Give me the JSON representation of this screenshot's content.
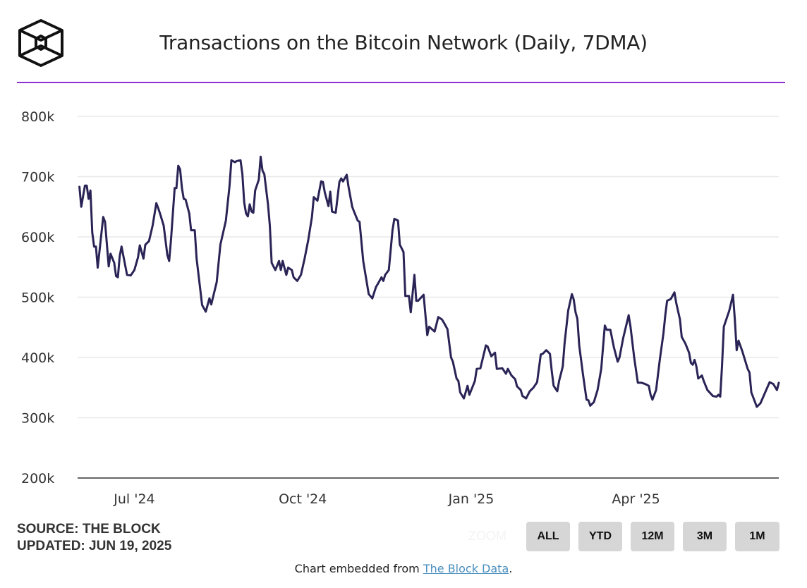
{
  "header": {
    "logo_name": "The Block",
    "title": "Transactions on the Bitcoin Network (Daily, 7DMA)"
  },
  "colors": {
    "accent_rule": "#8e2fd6",
    "line": "#2a2456",
    "grid": "#e8e8e8",
    "button_bg": "#d6d6d6",
    "link": "#4a8fbf"
  },
  "chart_data": {
    "type": "line",
    "title": "Transactions on the Bitcoin Network (Daily, 7DMA)",
    "xlabel": "",
    "ylabel": "",
    "xlim": [
      "2024-05-31",
      "2025-06-18"
    ],
    "ylim": [
      200000,
      800000
    ],
    "grid": true,
    "legend": "none",
    "yticks": [
      {
        "value": 200000,
        "label": "200k"
      },
      {
        "value": 300000,
        "label": "300k"
      },
      {
        "value": 400000,
        "label": "400k"
      },
      {
        "value": 500000,
        "label": "500k"
      },
      {
        "value": 600000,
        "label": "600k"
      },
      {
        "value": 700000,
        "label": "700k"
      },
      {
        "value": 800000,
        "label": "800k"
      }
    ],
    "xticks": [
      {
        "date": "2024-07-01",
        "label": "Jul '24"
      },
      {
        "date": "2024-10-01",
        "label": "Oct '24"
      },
      {
        "date": "2025-01-01",
        "label": "Jan '25"
      },
      {
        "date": "2025-04-01",
        "label": "Apr '25"
      }
    ],
    "series": [
      {
        "points": [
          [
            "2024-06-01",
            683000
          ],
          [
            "2024-06-02",
            650000
          ],
          [
            "2024-06-04",
            685000
          ],
          [
            "2024-06-05",
            685000
          ],
          [
            "2024-06-06",
            663000
          ],
          [
            "2024-06-07",
            677000
          ],
          [
            "2024-06-08",
            607000
          ],
          [
            "2024-06-09",
            584000
          ],
          [
            "2024-06-10",
            584000
          ],
          [
            "2024-06-11",
            549000
          ],
          [
            "2024-06-14",
            633000
          ],
          [
            "2024-06-15",
            625000
          ],
          [
            "2024-06-17",
            551000
          ],
          [
            "2024-06-18",
            572000
          ],
          [
            "2024-06-20",
            557000
          ],
          [
            "2024-06-21",
            535000
          ],
          [
            "2024-06-22",
            533000
          ],
          [
            "2024-06-23",
            568000
          ],
          [
            "2024-06-24",
            584000
          ],
          [
            "2024-06-27",
            537000
          ],
          [
            "2024-06-29",
            536000
          ],
          [
            "2024-07-01",
            545000
          ],
          [
            "2024-07-03",
            566000
          ],
          [
            "2024-07-04",
            586000
          ],
          [
            "2024-07-06",
            564000
          ],
          [
            "2024-07-07",
            587000
          ],
          [
            "2024-07-09",
            593000
          ],
          [
            "2024-07-11",
            619000
          ],
          [
            "2024-07-13",
            656000
          ],
          [
            "2024-07-14",
            648000
          ],
          [
            "2024-07-15",
            639000
          ],
          [
            "2024-07-17",
            619000
          ],
          [
            "2024-07-19",
            570000
          ],
          [
            "2024-07-20",
            560000
          ],
          [
            "2024-07-21",
            595000
          ],
          [
            "2024-07-23",
            681000
          ],
          [
            "2024-07-24",
            681000
          ],
          [
            "2024-07-25",
            718000
          ],
          [
            "2024-07-26",
            712000
          ],
          [
            "2024-07-27",
            681000
          ],
          [
            "2024-07-28",
            663000
          ],
          [
            "2024-07-29",
            662000
          ],
          [
            "2024-07-31",
            639000
          ],
          [
            "2024-08-01",
            611000
          ],
          [
            "2024-08-03",
            611000
          ],
          [
            "2024-08-04",
            564000
          ],
          [
            "2024-08-07",
            487000
          ],
          [
            "2024-08-09",
            476000
          ],
          [
            "2024-08-11",
            498000
          ],
          [
            "2024-08-12",
            488000
          ],
          [
            "2024-08-15",
            525000
          ],
          [
            "2024-08-17",
            587000
          ],
          [
            "2024-08-20",
            627000
          ],
          [
            "2024-08-22",
            685000
          ],
          [
            "2024-08-23",
            727000
          ],
          [
            "2024-08-25",
            724000
          ],
          [
            "2024-08-26",
            726000
          ],
          [
            "2024-08-28",
            727000
          ],
          [
            "2024-08-29",
            704000
          ],
          [
            "2024-08-30",
            657000
          ],
          [
            "2024-08-31",
            639000
          ],
          [
            "2024-09-01",
            634000
          ],
          [
            "2024-09-02",
            654000
          ],
          [
            "2024-09-03",
            642000
          ],
          [
            "2024-09-04",
            640000
          ],
          [
            "2024-09-05",
            677000
          ],
          [
            "2024-09-07",
            695000
          ],
          [
            "2024-09-08",
            733000
          ],
          [
            "2024-09-09",
            710000
          ],
          [
            "2024-09-10",
            704000
          ],
          [
            "2024-09-12",
            654000
          ],
          [
            "2024-09-13",
            619000
          ],
          [
            "2024-09-14",
            557000
          ],
          [
            "2024-09-16",
            545000
          ],
          [
            "2024-09-18",
            560000
          ],
          [
            "2024-09-19",
            545000
          ],
          [
            "2024-09-20",
            560000
          ],
          [
            "2024-09-22",
            537000
          ],
          [
            "2024-09-23",
            549000
          ],
          [
            "2024-09-25",
            545000
          ],
          [
            "2024-09-26",
            533000
          ],
          [
            "2024-09-28",
            527000
          ],
          [
            "2024-09-30",
            537000
          ],
          [
            "2024-10-02",
            564000
          ],
          [
            "2024-10-04",
            595000
          ],
          [
            "2024-10-06",
            633000
          ],
          [
            "2024-10-07",
            666000
          ],
          [
            "2024-10-09",
            660000
          ],
          [
            "2024-10-11",
            692000
          ],
          [
            "2024-10-12",
            691000
          ],
          [
            "2024-10-13",
            674000
          ],
          [
            "2024-10-15",
            651000
          ],
          [
            "2024-10-16",
            675000
          ],
          [
            "2024-10-17",
            642000
          ],
          [
            "2024-10-19",
            640000
          ],
          [
            "2024-10-21",
            691000
          ],
          [
            "2024-10-22",
            697000
          ],
          [
            "2024-10-23",
            692000
          ],
          [
            "2024-10-25",
            703000
          ],
          [
            "2024-10-26",
            683000
          ],
          [
            "2024-10-28",
            650000
          ],
          [
            "2024-10-29",
            642000
          ],
          [
            "2024-10-31",
            627000
          ],
          [
            "2024-11-01",
            625000
          ],
          [
            "2024-11-03",
            560000
          ],
          [
            "2024-11-06",
            505000
          ],
          [
            "2024-11-08",
            498000
          ],
          [
            "2024-11-10",
            517000
          ],
          [
            "2024-11-11",
            522000
          ],
          [
            "2024-11-13",
            533000
          ],
          [
            "2024-11-14",
            527000
          ],
          [
            "2024-11-15",
            537000
          ],
          [
            "2024-11-17",
            545000
          ],
          [
            "2024-11-19",
            611000
          ],
          [
            "2024-11-20",
            630000
          ],
          [
            "2024-11-22",
            627000
          ],
          [
            "2024-11-23",
            587000
          ],
          [
            "2024-11-25",
            575000
          ],
          [
            "2024-11-26",
            502000
          ],
          [
            "2024-11-28",
            502000
          ],
          [
            "2024-11-29",
            475000
          ],
          [
            "2024-12-01",
            537000
          ],
          [
            "2024-12-02",
            494000
          ],
          [
            "2024-12-03",
            494000
          ],
          [
            "2024-12-06",
            504000
          ],
          [
            "2024-12-08",
            437000
          ],
          [
            "2024-12-09",
            451000
          ],
          [
            "2024-12-12",
            443000
          ],
          [
            "2024-12-14",
            467000
          ],
          [
            "2024-12-16",
            463000
          ],
          [
            "2024-12-17",
            458000
          ],
          [
            "2024-12-19",
            447000
          ],
          [
            "2024-12-21",
            400000
          ],
          [
            "2024-12-22",
            393000
          ],
          [
            "2024-12-24",
            365000
          ],
          [
            "2024-12-25",
            361000
          ],
          [
            "2024-12-26",
            342000
          ],
          [
            "2024-12-28",
            332000
          ],
          [
            "2024-12-30",
            353000
          ],
          [
            "2024-12-31",
            338000
          ],
          [
            "2025-01-03",
            361000
          ],
          [
            "2025-01-04",
            381000
          ],
          [
            "2025-01-06",
            382000
          ],
          [
            "2025-01-09",
            420000
          ],
          [
            "2025-01-10",
            418000
          ],
          [
            "2025-01-12",
            402000
          ],
          [
            "2025-01-14",
            408000
          ],
          [
            "2025-01-15",
            381000
          ],
          [
            "2025-01-18",
            382000
          ],
          [
            "2025-01-20",
            373000
          ],
          [
            "2025-01-21",
            381000
          ],
          [
            "2025-01-23",
            370000
          ],
          [
            "2025-01-25",
            364000
          ],
          [
            "2025-01-26",
            352000
          ],
          [
            "2025-01-28",
            346000
          ],
          [
            "2025-01-29",
            336000
          ],
          [
            "2025-01-31",
            332000
          ],
          [
            "2025-02-02",
            344000
          ],
          [
            "2025-02-04",
            350000
          ],
          [
            "2025-02-06",
            359000
          ],
          [
            "2025-02-08",
            405000
          ],
          [
            "2025-02-09",
            406000
          ],
          [
            "2025-02-11",
            412000
          ],
          [
            "2025-02-13",
            406000
          ],
          [
            "2025-02-14",
            377000
          ],
          [
            "2025-02-15",
            353000
          ],
          [
            "2025-02-17",
            344000
          ],
          [
            "2025-02-18",
            361000
          ],
          [
            "2025-02-20",
            385000
          ],
          [
            "2025-02-21",
            423000
          ],
          [
            "2025-02-23",
            478000
          ],
          [
            "2025-02-25",
            505000
          ],
          [
            "2025-02-26",
            496000
          ],
          [
            "2025-02-27",
            475000
          ],
          [
            "2025-02-28",
            464000
          ],
          [
            "2025-03-01",
            420000
          ],
          [
            "2025-03-03",
            373000
          ],
          [
            "2025-03-05",
            330000
          ],
          [
            "2025-03-06",
            329000
          ],
          [
            "2025-03-07",
            320000
          ],
          [
            "2025-03-09",
            326000
          ],
          [
            "2025-03-11",
            346000
          ],
          [
            "2025-03-13",
            381000
          ],
          [
            "2025-03-15",
            453000
          ],
          [
            "2025-03-16",
            446000
          ],
          [
            "2025-03-18",
            446000
          ],
          [
            "2025-03-20",
            416000
          ],
          [
            "2025-03-22",
            393000
          ],
          [
            "2025-03-23",
            400000
          ],
          [
            "2025-03-25",
            432000
          ],
          [
            "2025-03-28",
            470000
          ],
          [
            "2025-03-29",
            451000
          ],
          [
            "2025-03-31",
            400000
          ],
          [
            "2025-04-02",
            358000
          ],
          [
            "2025-04-04",
            358000
          ],
          [
            "2025-04-06",
            356000
          ],
          [
            "2025-04-08",
            353000
          ],
          [
            "2025-04-09",
            338000
          ],
          [
            "2025-04-10",
            330000
          ],
          [
            "2025-04-12",
            346000
          ],
          [
            "2025-04-14",
            396000
          ],
          [
            "2025-04-16",
            440000
          ],
          [
            "2025-04-17",
            470000
          ],
          [
            "2025-04-18",
            494000
          ],
          [
            "2025-04-20",
            497000
          ],
          [
            "2025-04-22",
            508000
          ],
          [
            "2025-04-23",
            490000
          ],
          [
            "2025-04-25",
            463000
          ],
          [
            "2025-04-26",
            434000
          ],
          [
            "2025-04-28",
            423000
          ],
          [
            "2025-04-30",
            408000
          ],
          [
            "2025-05-01",
            391000
          ],
          [
            "2025-05-02",
            388000
          ],
          [
            "2025-05-03",
            396000
          ],
          [
            "2025-05-04",
            385000
          ],
          [
            "2025-05-05",
            365000
          ],
          [
            "2025-05-07",
            370000
          ],
          [
            "2025-05-08",
            361000
          ],
          [
            "2025-05-10",
            346000
          ],
          [
            "2025-05-13",
            336000
          ],
          [
            "2025-05-15",
            335000
          ],
          [
            "2025-05-16",
            338000
          ],
          [
            "2025-05-17",
            335000
          ],
          [
            "2025-05-18",
            385000
          ],
          [
            "2025-05-19",
            451000
          ],
          [
            "2025-05-22",
            478000
          ],
          [
            "2025-05-24",
            504000
          ],
          [
            "2025-05-25",
            463000
          ],
          [
            "2025-05-26",
            412000
          ],
          [
            "2025-05-27",
            428000
          ],
          [
            "2025-05-29",
            411000
          ],
          [
            "2025-06-01",
            381000
          ],
          [
            "2025-06-02",
            375000
          ],
          [
            "2025-06-03",
            342000
          ],
          [
            "2025-06-06",
            318000
          ],
          [
            "2025-06-08",
            324000
          ],
          [
            "2025-06-10",
            338000
          ],
          [
            "2025-06-13",
            359000
          ],
          [
            "2025-06-15",
            356000
          ],
          [
            "2025-06-17",
            346000
          ],
          [
            "2025-06-18",
            358000
          ]
        ]
      }
    ]
  },
  "footer": {
    "source": "SOURCE: THE BLOCK",
    "updated": "UPDATED: JUN 19, 2025",
    "zoom_label": "ZOOM",
    "range_buttons": [
      "ALL",
      "YTD",
      "12M",
      "3M",
      "1M"
    ],
    "embed_prefix": "Chart embedded from ",
    "embed_link": "The Block Data",
    "embed_suffix": "."
  }
}
